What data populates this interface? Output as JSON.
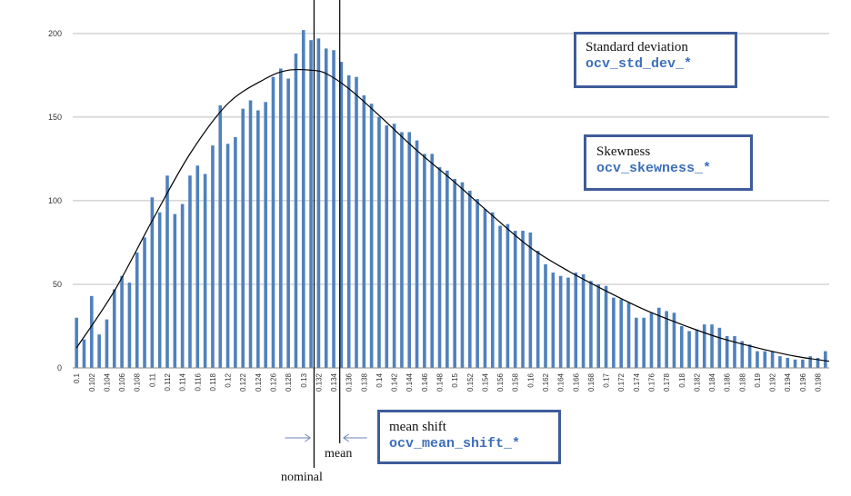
{
  "chart_data": {
    "type": "bar",
    "title": "",
    "xlabel": "",
    "ylabel": "",
    "ylim": [
      0,
      220
    ],
    "yticks": [
      0,
      50,
      100,
      150,
      200
    ],
    "grid": "horizontal",
    "bar_color": "#4f81bd",
    "curve_color": "#000000",
    "x": [
      0.1,
      0.101,
      0.102,
      0.103,
      0.104,
      0.105,
      0.106,
      0.107,
      0.108,
      0.109,
      0.11,
      0.111,
      0.112,
      0.113,
      0.114,
      0.115,
      0.116,
      0.117,
      0.118,
      0.119,
      0.12,
      0.121,
      0.122,
      0.123,
      0.124,
      0.125,
      0.126,
      0.127,
      0.128,
      0.129,
      0.13,
      0.131,
      0.132,
      0.133,
      0.134,
      0.135,
      0.136,
      0.137,
      0.138,
      0.139,
      0.14,
      0.141,
      0.142,
      0.143,
      0.144,
      0.145,
      0.146,
      0.147,
      0.148,
      0.149,
      0.15,
      0.151,
      0.152,
      0.153,
      0.154,
      0.155,
      0.156,
      0.157,
      0.158,
      0.159,
      0.16,
      0.161,
      0.162,
      0.163,
      0.164,
      0.165,
      0.166,
      0.167,
      0.168,
      0.169,
      0.17,
      0.171,
      0.172,
      0.173,
      0.174,
      0.175,
      0.176,
      0.177,
      0.178,
      0.179,
      0.18,
      0.181,
      0.182,
      0.183,
      0.184,
      0.185,
      0.186,
      0.187,
      0.188,
      0.189,
      0.19,
      0.191,
      0.192,
      0.193,
      0.194,
      0.195,
      0.196,
      0.197,
      0.198,
      0.199
    ],
    "values": [
      30,
      17,
      43,
      20,
      29,
      47,
      55,
      51,
      69,
      78,
      102,
      93,
      115,
      92,
      98,
      115,
      121,
      116,
      133,
      157,
      134,
      138,
      155,
      160,
      154,
      159,
      174,
      179,
      173,
      188,
      202,
      196,
      197,
      191,
      190,
      183,
      175,
      174,
      163,
      158,
      150,
      145,
      146,
      141,
      141,
      136,
      128,
      128,
      120,
      118,
      113,
      111,
      106,
      101,
      95,
      93,
      85,
      86,
      82,
      82,
      81,
      70,
      62,
      57,
      55,
      54,
      57,
      56,
      52,
      50,
      49,
      42,
      41,
      39,
      30,
      30,
      33,
      36,
      34,
      33,
      25,
      22,
      23,
      26,
      26,
      24,
      19,
      19,
      16,
      14,
      10,
      10,
      10,
      7,
      6,
      5,
      5,
      7,
      6,
      10
    ],
    "xtick_labels": [
      "0.1",
      "0.102",
      "0.104",
      "0.106",
      "0.108",
      "0.11",
      "0.112",
      "0.114",
      "0.116",
      "0.118",
      "0.12",
      "0.122",
      "0.124",
      "0.126",
      "0.128",
      "0.13",
      "0.132",
      "0.134",
      "0.136",
      "0.138",
      "0.14",
      "0.142",
      "0.144",
      "0.146",
      "0.148",
      "0.15",
      "0.152",
      "0.154",
      "0.156",
      "0.158",
      "0.16",
      "0.162",
      "0.164",
      "0.166",
      "0.168",
      "0.17",
      "0.172",
      "0.174",
      "0.176",
      "0.178",
      "0.18",
      "0.182",
      "0.184",
      "0.186",
      "0.188",
      "0.19",
      "0.192",
      "0.194",
      "0.196",
      "0.198"
    ],
    "fit_curve": {
      "x": [
        0.1,
        0.105,
        0.11,
        0.115,
        0.12,
        0.125,
        0.128,
        0.131,
        0.133,
        0.136,
        0.14,
        0.145,
        0.15,
        0.155,
        0.16,
        0.165,
        0.17,
        0.175,
        0.18,
        0.185,
        0.19,
        0.195,
        0.1995
      ],
      "y": [
        12,
        46,
        88,
        128,
        158,
        173,
        178,
        178,
        176,
        167,
        151,
        130,
        111,
        91,
        72,
        58,
        46,
        35,
        26,
        18,
        12,
        7,
        4
      ]
    },
    "nominal_x": 0.1314,
    "mean_x": 0.1348
  },
  "callouts": {
    "std_dev": {
      "label": "Standard deviation",
      "code": "ocv_std_dev_*"
    },
    "skewness": {
      "label": "Skewness",
      "code": "ocv_skewness_*"
    },
    "mean_shift": {
      "label": "mean shift",
      "code": "ocv_mean_shift_*"
    }
  },
  "markers": {
    "mean_label": "mean",
    "nominal_label": "nominal"
  }
}
